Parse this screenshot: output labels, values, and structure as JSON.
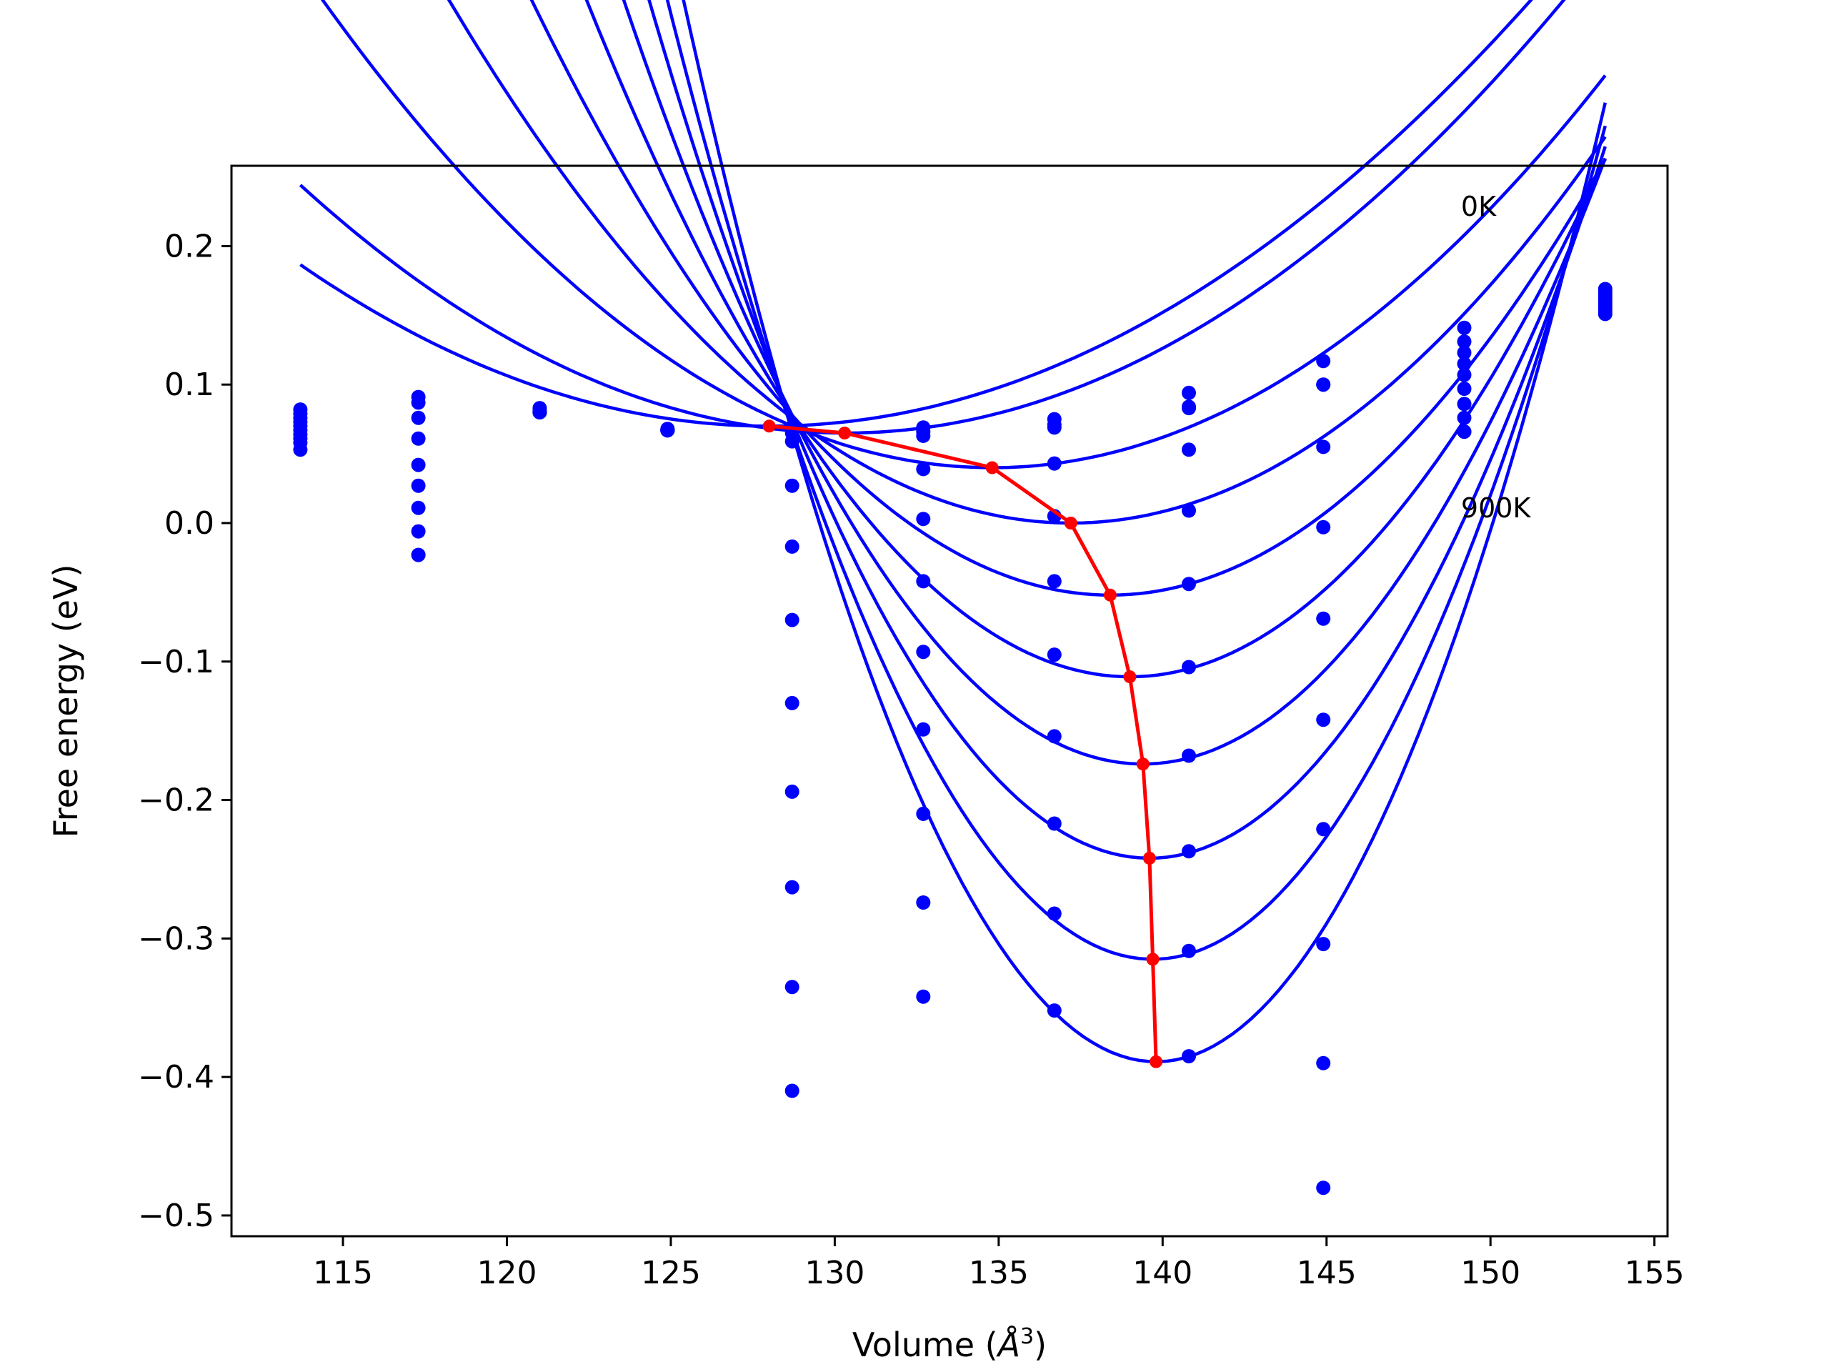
{
  "chart_data": {
    "type": "line",
    "title": "",
    "xlabel_main": "Volume (",
    "xlabel_unit": "Å",
    "xlabel_sup": "3",
    "xlabel_close": ")",
    "ylabel": "Free energy (eV)",
    "xlim": [
      111.6,
      155.4
    ],
    "ylim": [
      -0.515,
      0.258
    ],
    "xticks": [
      115,
      120,
      125,
      130,
      135,
      140,
      145,
      150,
      155
    ],
    "xtick_labels": [
      "115",
      "120",
      "125",
      "130",
      "135",
      "140",
      "145",
      "150",
      "155"
    ],
    "yticks": [
      0.2,
      0.1,
      0.0,
      -0.1,
      -0.2,
      -0.3,
      -0.4,
      -0.5
    ],
    "ytick_labels": [
      "0.2",
      "0.1",
      "0.0",
      "−0.1",
      "−0.2",
      "−0.3",
      "−0.4",
      "−0.5"
    ],
    "grid": false,
    "colors": {
      "curves": "#0000ff",
      "points": "#0000ff",
      "minima": "#ff0000",
      "axes": "#000000"
    },
    "fit_x_range": [
      113.7,
      153.5
    ],
    "sample_volumes": [
      113.7,
      117.3,
      121.0,
      124.9,
      128.7,
      132.7,
      136.7,
      140.8,
      144.9,
      149.2,
      153.5
    ],
    "series": [
      {
        "min_volume": 128.0,
        "min_energy": 0.07,
        "curvature": 0.00057,
        "points": [
          0.082,
          0.091,
          0.083,
          0.068,
          0.069,
          0.069,
          0.075,
          0.094,
          0.117,
          0.141,
          0.169
        ]
      },
      {
        "min_volume": 130.3,
        "min_energy": 0.065,
        "curvature": 0.00065,
        "points": [
          0.079,
          0.087,
          0.081,
          0.067,
          0.065,
          0.066,
          0.071,
          0.084,
          0.1,
          0.131,
          0.167
        ]
      },
      {
        "min_volume": 134.8,
        "min_energy": 0.04,
        "curvature": 0.00081,
        "points": [
          0.076,
          0.076,
          0.08,
          0.067,
          0.059,
          0.063,
          0.069,
          0.083,
          0.1,
          0.123,
          0.165
        ]
      },
      {
        "min_volume": 137.2,
        "min_energy": 0.0,
        "curvature": 0.00105,
        "points": [
          0.073,
          0.061,
          0.08,
          0.067,
          0.027,
          0.039,
          0.043,
          0.053,
          0.055,
          0.115,
          0.163
        ]
      },
      {
        "min_volume": 138.4,
        "min_energy": -0.052,
        "curvature": 0.00138,
        "points": [
          0.07,
          0.042,
          0.08,
          0.067,
          -0.017,
          0.003,
          0.005,
          0.009,
          -0.003,
          0.107,
          0.161
        ]
      },
      {
        "min_volume": 139.0,
        "min_energy": -0.111,
        "curvature": 0.00178,
        "points": [
          0.067,
          0.027,
          0.08,
          0.067,
          -0.07,
          -0.042,
          -0.042,
          -0.044,
          -0.069,
          0.097,
          0.159
        ]
      },
      {
        "min_volume": 139.4,
        "min_energy": -0.174,
        "curvature": 0.0022,
        "points": [
          0.064,
          0.011,
          0.08,
          0.067,
          -0.13,
          -0.093,
          -0.095,
          -0.104,
          -0.142,
          0.086,
          0.157
        ]
      },
      {
        "min_volume": 139.6,
        "min_energy": -0.242,
        "curvature": 0.00266,
        "points": [
          0.061,
          -0.006,
          0.08,
          0.067,
          -0.194,
          -0.149,
          -0.154,
          -0.168,
          -0.221,
          0.076,
          0.155
        ]
      },
      {
        "min_volume": 139.7,
        "min_energy": -0.315,
        "curvature": 0.00316,
        "points": [
          0.058,
          -0.023,
          0.08,
          0.067,
          -0.263,
          -0.21,
          -0.217,
          -0.237,
          -0.304,
          0.066,
          0.153
        ]
      },
      {
        "min_volume": 139.8,
        "min_energy": -0.389,
        "curvature": 0.00369,
        "points": [
          0.053,
          -0.023,
          0.08,
          0.067,
          -0.335,
          -0.274,
          -0.282,
          -0.309,
          -0.39,
          0.066,
          0.151
        ]
      }
    ],
    "extra_points": [
      {
        "x": 128.7,
        "y": -0.41
      },
      {
        "x": 132.7,
        "y": -0.342
      },
      {
        "x": 136.7,
        "y": -0.352
      },
      {
        "x": 140.8,
        "y": -0.385
      },
      {
        "x": 144.9,
        "y": -0.48
      }
    ],
    "minima": {
      "x": [
        128.0,
        130.3,
        134.8,
        137.2,
        138.4,
        139.0,
        139.4,
        139.6,
        139.7,
        139.8
      ],
      "y": [
        0.07,
        0.065,
        0.04,
        0.0,
        -0.052,
        -0.111,
        -0.174,
        -0.242,
        -0.315,
        -0.389
      ]
    },
    "annotations": [
      {
        "text": "0K",
        "x": 149.1,
        "y": 0.222
      },
      {
        "text": "900K",
        "x": 149.1,
        "y": 0.004
      }
    ]
  }
}
